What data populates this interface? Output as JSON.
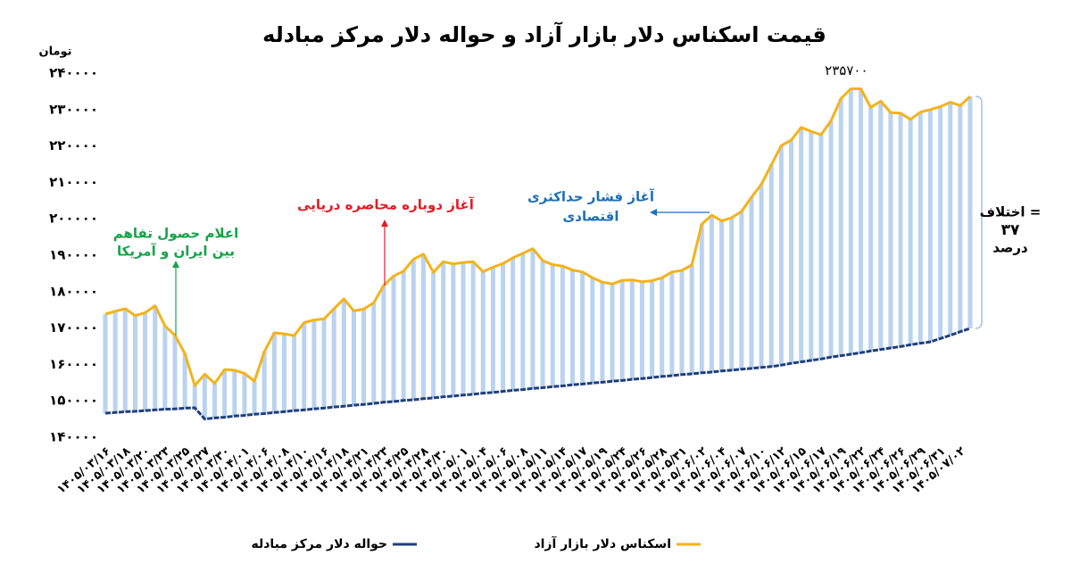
{
  "chart_data": {
    "type": "line",
    "title": "قیمت اسکناس دلار بازار آزاد و حواله دلار مرکز مبادله",
    "y_unit": "تومان",
    "categories": [
      "۱۴۰۵/۰۳/۱۶",
      null,
      "۱۴۰۵/۰۳/۱۸",
      null,
      "۱۴۰۵/۰۳/۲۰",
      null,
      "۱۴۰۵/۰۳/۲۳",
      null,
      "۱۴۰۵/۰۳/۲۵",
      null,
      "۱۴۰۵/۰۳/۲۷",
      null,
      "۱۴۰۵/۰۳/۳۰",
      null,
      "۱۴۰۵/۰۴/۰۱",
      null,
      "۱۴۰۵/۰۴/۰۶",
      null,
      "۱۴۰۵/۰۴/۰۸",
      null,
      "۱۴۰۵/۰۴/۱۰",
      null,
      "۱۴۰۵/۰۴/۱۶",
      null,
      "۱۴۰۵/۰۴/۱۸",
      null,
      "۱۴۰۵/۰۴/۲۱",
      null,
      "۱۴۰۵/۰۴/۲۳",
      null,
      "۱۴۰۵/۰۴/۲۵",
      null,
      "۱۴۰۵/۰۴/۲۸",
      null,
      "۱۴۰۵/۰۴/۳۰",
      null,
      "۱۴۰۵/۰۵/۰۱",
      null,
      "۱۴۰۵/۰۵/۰۴",
      null,
      "۱۴۰۵/۰۵/۰۶",
      null,
      "۱۴۰۵/۰۵/۰۸",
      null,
      "۱۴۰۵/۰۵/۱۱",
      null,
      "۱۴۰۵/۰۵/۱۴",
      null,
      "۱۴۰۵/۰۵/۱۷",
      null,
      "۱۴۰۵/۰۵/۱۹",
      null,
      "۱۴۰۵/۰۵/۲۴",
      null,
      "۱۴۰۵/۰۵/۲۶",
      null,
      "۱۴۰۵/۰۵/۲۸",
      null,
      "۱۴۰۵/۰۵/۳۱",
      null,
      "۱۴۰۵/۰۶/۰۲",
      null,
      "۱۴۰۵/۰۶/۰۴",
      null,
      "۱۴۰۵/۰۶/۰۷",
      null,
      "۱۴۰۵/۰۶/۱۰",
      null,
      "۱۴۰۵/۰۶/۱۲",
      null,
      "۱۴۰۵/۰۶/۱۵",
      null,
      "۱۴۰۵/۰۶/۱۷",
      null,
      "۱۴۰۵/۰۶/۱۹",
      null,
      "۱۴۰۵/۰۶/۲۲",
      null,
      "۱۴۰۵/۰۶/۲۴",
      null,
      "۱۴۰۵/۰۶/۲۶",
      null,
      "۱۴۰۵/۰۶/۲۹",
      null,
      "۱۴۰۵/۰۶/۳۱",
      null,
      "۱۴۰۵/۰۷/۰۲",
      null
    ],
    "series": [
      {
        "name": "اسکناس دلار بازار آزاد",
        "color": "#f5b21b",
        "values": [
          173800,
          174600,
          175300,
          173400,
          174200,
          176100,
          170600,
          168000,
          163000,
          154200,
          157300,
          154800,
          158600,
          158400,
          157500,
          155400,
          163500,
          168700,
          168400,
          167900,
          171500,
          172200,
          172500,
          175300,
          178000,
          174700,
          175200,
          176900,
          181700,
          184300,
          185600,
          188900,
          190300,
          185300,
          188200,
          187600,
          188000,
          188200,
          185500,
          186700,
          187700,
          189300,
          190500,
          191800,
          188500,
          187400,
          187000,
          185900,
          185400,
          183800,
          182600,
          182100,
          183100,
          183200,
          182700,
          183000,
          183800,
          185400,
          185800,
          187300,
          198500,
          201000,
          199400,
          200300,
          202000,
          205900,
          209500,
          214800,
          220100,
          221600,
          225100,
          224000,
          223100,
          226900,
          233000,
          235700,
          235700,
          230600,
          232300,
          229200,
          229000,
          227300,
          229300,
          230000,
          230800,
          232000,
          231100,
          233600
        ],
        "value_labels": [
          null,
          null,
          null,
          null,
          null,
          null,
          null,
          null,
          null,
          null,
          null,
          null,
          null,
          null,
          null,
          null,
          null,
          null,
          null,
          null,
          null,
          null,
          null,
          null,
          null,
          null,
          null,
          null,
          null,
          null,
          null,
          null,
          null,
          null,
          null,
          null,
          null,
          null,
          null,
          null,
          null,
          null,
          null,
          null,
          null,
          null,
          null,
          null,
          null,
          null,
          null,
          null,
          null,
          null,
          null,
          null,
          null,
          null,
          null,
          null,
          null,
          null,
          null,
          null,
          null,
          null,
          null,
          null,
          null,
          null,
          null,
          null,
          null,
          null,
          null,
          "۲۳۵۷۰۰",
          null,
          null,
          null,
          null,
          null,
          null,
          null,
          null,
          null,
          null,
          null,
          null
        ]
      },
      {
        "name": "حواله دلار مرکز مبادله",
        "color": "#1f3f7a",
        "values": [
          146600,
          146800,
          147000,
          147100,
          147300,
          147500,
          147700,
          147800,
          148000,
          148100,
          145000,
          145300,
          145500,
          145800,
          146000,
          146300,
          146500,
          146800,
          147000,
          147300,
          147500,
          147800,
          148000,
          148300,
          148500,
          148800,
          149000,
          149300,
          149600,
          149800,
          150100,
          150300,
          150600,
          150800,
          151100,
          151300,
          151600,
          151800,
          152100,
          152300,
          152600,
          152900,
          153100,
          153400,
          153600,
          153900,
          154100,
          154400,
          154600,
          154900,
          155100,
          155400,
          155600,
          155900,
          156100,
          156400,
          156700,
          156900,
          157200,
          157400,
          157700,
          157900,
          158200,
          158400,
          158700,
          158900,
          159200,
          159400,
          159800,
          160300,
          160700,
          161100,
          161500,
          162000,
          162400,
          162800,
          163200,
          163700,
          164100,
          164500,
          164900,
          165400,
          165800,
          166200,
          167100,
          168000,
          169000,
          169900
        ]
      }
    ],
    "fill_between_color": "#b9d3f0",
    "ylim": [
      140000,
      240000
    ],
    "yticks": [
      {
        "value": 140000,
        "label": "۱۴۰۰۰۰"
      },
      {
        "value": 150000,
        "label": "۱۵۰۰۰۰"
      },
      {
        "value": 160000,
        "label": "۱۶۰۰۰۰"
      },
      {
        "value": 170000,
        "label": "۱۷۰۰۰۰"
      },
      {
        "value": 180000,
        "label": "۱۸۰۰۰۰"
      },
      {
        "value": 190000,
        "label": "۱۹۰۰۰۰"
      },
      {
        "value": 200000,
        "label": "۲۰۰۰۰۰"
      },
      {
        "value": 210000,
        "label": "۲۱۰۰۰۰"
      },
      {
        "value": 220000,
        "label": "۲۲۰۰۰۰"
      },
      {
        "value": 230000,
        "label": "۲۳۰۰۰۰"
      },
      {
        "value": 240000,
        "label": "۲۴۰۰۰۰"
      }
    ],
    "grid": false,
    "legend": "bottom",
    "annotations": [
      {
        "lines": [
          "اعلام حصول تفاهم",
          "بین ایران و آمریکا"
        ],
        "color": "#16a34a"
      },
      {
        "lines": [
          "آغاز دوباره محاصره دریایی"
        ],
        "color": "#e11d24"
      },
      {
        "lines": [
          "آغاز فشار حداکثری",
          "اقتصادی"
        ],
        "color": "#1e6fb8"
      },
      {
        "lines": [
          "اختلاف =",
          "۳۷",
          "درصد"
        ],
        "color": "#000000"
      }
    ]
  }
}
